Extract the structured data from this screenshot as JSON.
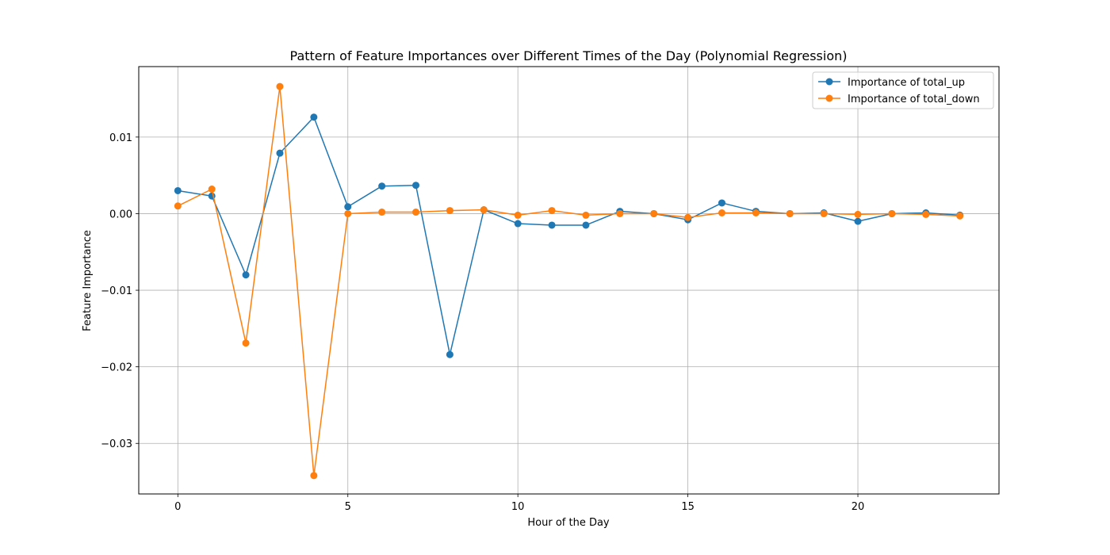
{
  "chart_data": {
    "type": "line",
    "title": "Pattern of Feature Importances over Different Times of the Day (Polynomial Regression)",
    "xlabel": "Hour of the Day",
    "ylabel": "Feature Importance",
    "xlim": [
      -1.15,
      24.15
    ],
    "ylim": [
      -0.0366,
      0.0192
    ],
    "xticks": [
      0,
      5,
      10,
      15,
      20
    ],
    "xtick_labels": [
      "0",
      "5",
      "10",
      "15",
      "20"
    ],
    "yticks": [
      0.01,
      0.0,
      -0.01,
      -0.02,
      -0.03
    ],
    "ytick_labels": [
      "0.01",
      "0.00",
      "−0.01",
      "−0.02",
      "−0.03"
    ],
    "grid": true,
    "legend_position": "top-right",
    "x": [
      0,
      1,
      2,
      3,
      4,
      5,
      6,
      7,
      8,
      9,
      10,
      11,
      12,
      13,
      14,
      15,
      16,
      17,
      18,
      19,
      20,
      21,
      22,
      23
    ],
    "series": [
      {
        "name": "Importance of total_up",
        "color": "#1f77b4",
        "values": [
          0.003,
          0.0023,
          -0.008,
          0.0079,
          0.0126,
          0.0009,
          0.0036,
          0.0037,
          -0.0184,
          0.0005,
          -0.0013,
          -0.0015,
          -0.0015,
          0.0003,
          0.0,
          -0.0008,
          0.0014,
          0.0003,
          0.0,
          0.0001,
          -0.001,
          0.0,
          0.0001,
          -0.0002
        ]
      },
      {
        "name": "Importance of total_down",
        "color": "#ff7f0e",
        "values": [
          0.001,
          0.0032,
          -0.0169,
          0.0166,
          -0.0342,
          0.0,
          0.0002,
          0.0002,
          0.0004,
          0.0005,
          -0.0002,
          0.0004,
          -0.0002,
          0.0,
          0.0,
          -0.0005,
          0.0001,
          0.0001,
          0.0,
          0.0,
          -0.0001,
          0.0,
          -0.0001,
          -0.0003
        ]
      }
    ]
  }
}
